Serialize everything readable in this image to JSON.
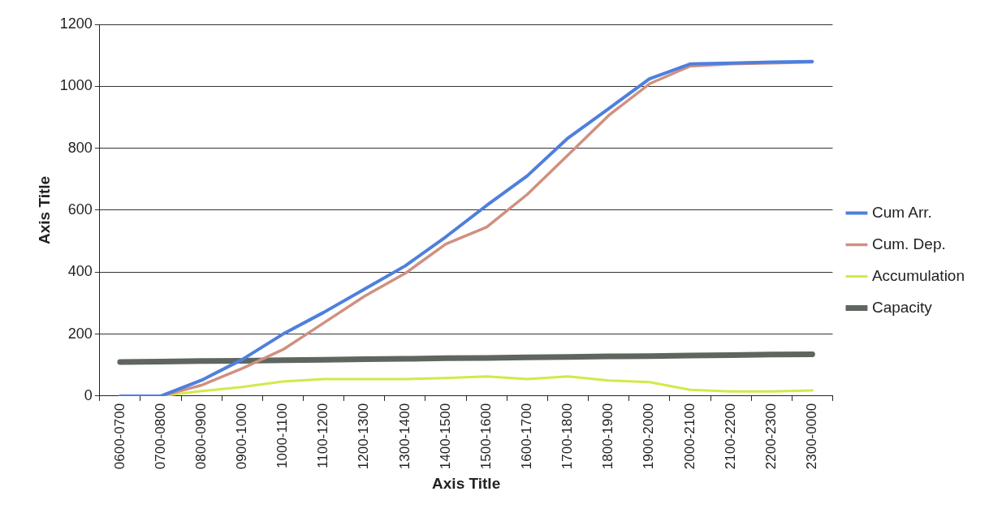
{
  "chart_data": {
    "type": "line",
    "xlabel": "Axis Title",
    "ylabel": "Axis Title",
    "categories": [
      "0600-0700",
      "0700-0800",
      "0800-0900",
      "0900-1000",
      "1000-1100",
      "1100-1200",
      "1200-1300",
      "1300-1400",
      "1400-1500",
      "1500-1600",
      "1600-1700",
      "1700-1800",
      "1800-1900",
      "1900-2000",
      "2000-2100",
      "2100-2200",
      "2200-2300",
      "2300-0000"
    ],
    "series": [
      {
        "name": "Cum Arr.",
        "color": "#4f7fdc",
        "values": [
          0,
          0,
          51,
          118,
          200,
          270,
          345,
          420,
          514,
          615,
          711,
          833,
          928,
          1024,
          1072,
          1075,
          1078,
          1080
        ]
      },
      {
        "name": "Cum. Dep.",
        "color": "#d09080",
        "values": [
          0,
          0,
          35,
          89,
          150,
          236,
          322,
          396,
          491,
          545,
          651,
          778,
          906,
          1008,
          1065,
          1072,
          1075,
          1078
        ]
      },
      {
        "name": "Accumulation",
        "color": "#d4e84a",
        "values": [
          0,
          0,
          16,
          29,
          47,
          55,
          55,
          55,
          58,
          63,
          55,
          63,
          50,
          45,
          20,
          15,
          15,
          18
        ]
      },
      {
        "name": "Capacity",
        "color": "#5f6660",
        "values": [
          110,
          111,
          113,
          114,
          116,
          117,
          119,
          120,
          122,
          123,
          125,
          126,
          128,
          129,
          131,
          132,
          134,
          135
        ]
      }
    ],
    "ylim": [
      0,
      1200
    ],
    "yticks": [
      0,
      200,
      400,
      600,
      800,
      1000,
      1200
    ],
    "grid": "y",
    "legend": "right",
    "marker": "none",
    "line_style": "solid"
  }
}
